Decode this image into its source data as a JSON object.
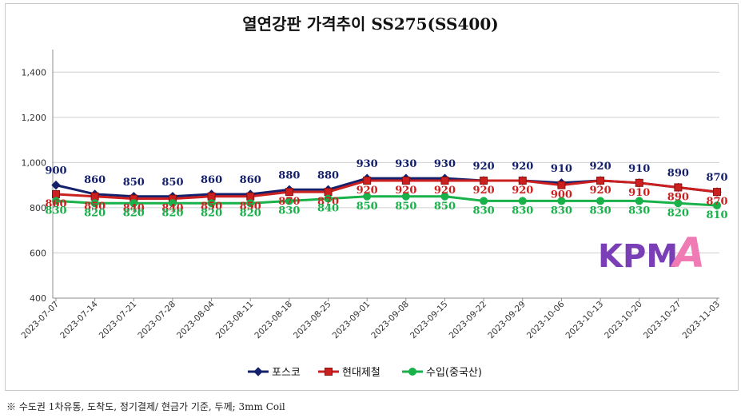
{
  "chart_data": {
    "type": "line",
    "title": "열연강판 가격추이 SS275(SS400)",
    "categories": [
      "2023-07-07",
      "2023-07-14",
      "2023-07-21",
      "2023-07-28",
      "2023-08-04",
      "2023-08-11",
      "2023-08-18",
      "2023-08-25",
      "2023-09-01",
      "2023-09-08",
      "2023-09-15",
      "2023-09-22",
      "2023-09-29",
      "2023-10-06",
      "2023-10-13",
      "2023-10-20",
      "2023-10-27",
      "2023-11-03"
    ],
    "series": [
      {
        "name": "포스코",
        "color": "#14206b",
        "marker": "diamond",
        "values": [
          900,
          860,
          850,
          850,
          860,
          860,
          880,
          880,
          930,
          930,
          930,
          920,
          920,
          910,
          920,
          910,
          890,
          870
        ]
      },
      {
        "name": "현대제철",
        "color": "#cc1f1f",
        "marker": "square",
        "values": [
          860,
          850,
          840,
          840,
          850,
          850,
          870,
          870,
          920,
          920,
          920,
          920,
          920,
          900,
          920,
          910,
          890,
          870
        ]
      },
      {
        "name": "수입(중국산)",
        "color": "#19b14a",
        "marker": "circle",
        "values": [
          830,
          820,
          820,
          820,
          820,
          820,
          830,
          840,
          850,
          850,
          850,
          830,
          830,
          830,
          830,
          830,
          820,
          810
        ]
      }
    ],
    "ylim": [
      400,
      1500
    ],
    "yticks": [
      400,
      600,
      800,
      1000,
      1200,
      1400
    ],
    "ytick_labels": [
      "400",
      "600",
      "800",
      "1,000",
      "1,200",
      "1,400"
    ],
    "xlabel": "",
    "ylabel": "",
    "grid": "horizontal",
    "legend_position": "bottom"
  },
  "footnote": "※ 수도권 1차유통, 도착도, 정기결제/ 현금가 기준, 두께; 3mm Coil",
  "logo": {
    "text_left": "KPM",
    "text_right": "A",
    "color_left": "#7a3fb6",
    "color_right": "#f07ab4"
  }
}
